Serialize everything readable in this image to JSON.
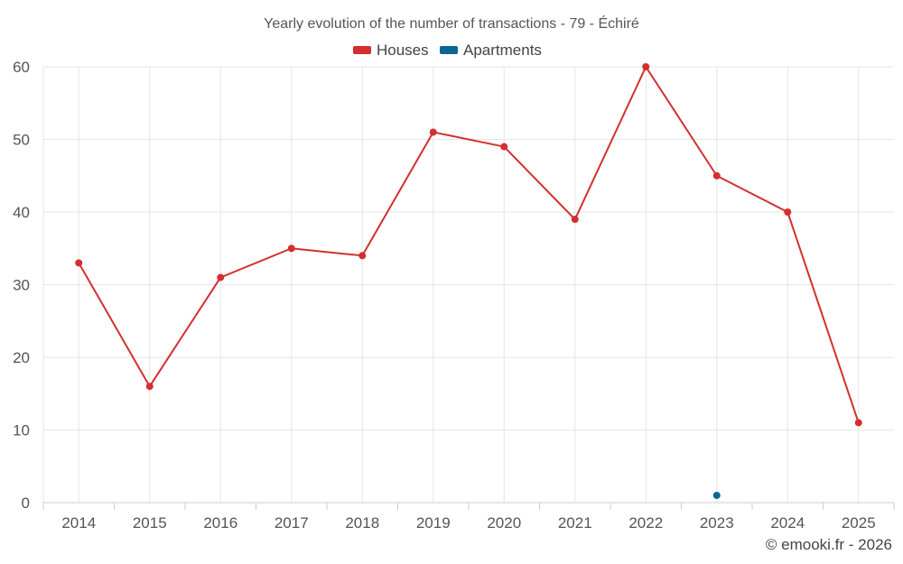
{
  "chart_data": {
    "type": "line",
    "title": "Yearly evolution of the number of transactions - 79 - Échiré",
    "categories": [
      "2014",
      "2015",
      "2016",
      "2017",
      "2018",
      "2019",
      "2020",
      "2021",
      "2022",
      "2023",
      "2024",
      "2025"
    ],
    "series": [
      {
        "name": "Houses",
        "color": "#d32f2f",
        "values": [
          33,
          16,
          31,
          35,
          34,
          51,
          49,
          39,
          60,
          45,
          40,
          11
        ]
      },
      {
        "name": "Apartments",
        "color": "#0d6496",
        "values": [
          null,
          null,
          null,
          null,
          null,
          null,
          null,
          null,
          null,
          1,
          null,
          null
        ]
      }
    ],
    "ylim": [
      0,
      60
    ],
    "yticks": [
      "0",
      "10",
      "20",
      "30",
      "40",
      "50",
      "60"
    ],
    "xlabel": "",
    "ylabel": "",
    "grid": true,
    "legend": "top-center"
  },
  "credit": "© emooki.fr - 2026"
}
